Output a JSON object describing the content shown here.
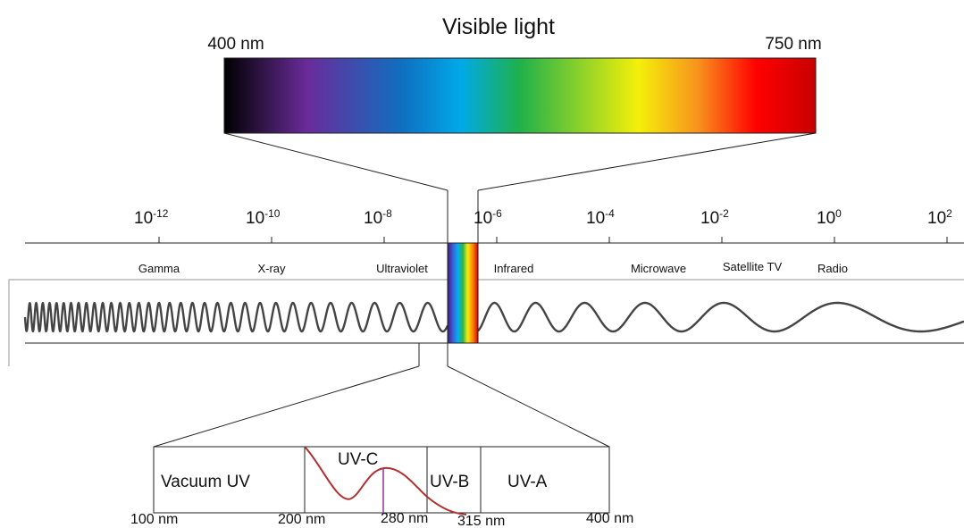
{
  "visible": {
    "title": "Visible light",
    "left_label": "400 nm",
    "right_label": "750 nm"
  },
  "scale": {
    "ticks": [
      {
        "base": "10",
        "exp": "-12"
      },
      {
        "base": "10",
        "exp": "-10"
      },
      {
        "base": "10",
        "exp": "-8"
      },
      {
        "base": "10",
        "exp": "-6"
      },
      {
        "base": "10",
        "exp": "-4"
      },
      {
        "base": "10",
        "exp": "-2"
      },
      {
        "base": "10",
        "exp": "0"
      },
      {
        "base": "10",
        "exp": "2"
      }
    ]
  },
  "bands": [
    "Gamma",
    "X-ray",
    "Ultraviolet",
    "Infrared",
    "Microwave",
    "Satellite TV",
    "Radio"
  ],
  "uv": {
    "sections": [
      "Vacuum UV",
      "UV-C",
      "UV-B",
      "UV-A"
    ],
    "boundaries": [
      "100 nm",
      "200 nm",
      "280 nm",
      "315 nm",
      "400 nm"
    ]
  },
  "colors": {
    "spectrum": [
      "#000000",
      "#6a2b9a",
      "#0f6fc0",
      "#00a9e8",
      "#1fb14a",
      "#f4f00a",
      "#f7941d",
      "#ff0000",
      "#c80000"
    ],
    "uv_curve": "#b03030",
    "uv_marker": "#9b2f9b"
  }
}
